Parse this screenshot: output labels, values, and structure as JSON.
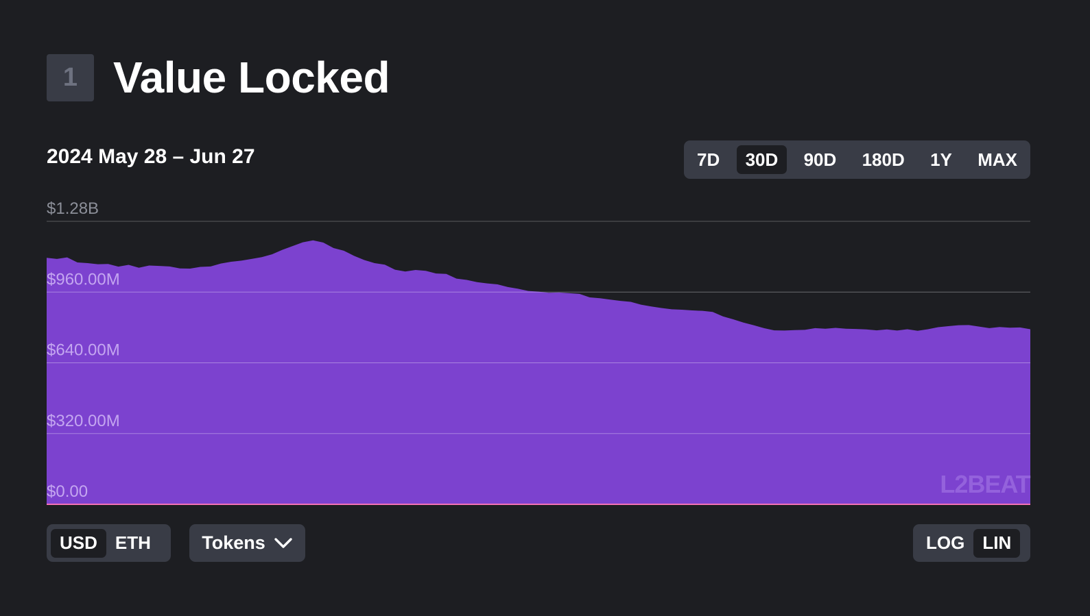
{
  "section": {
    "number": "1",
    "title": "Value Locked"
  },
  "date_range": "2024 May 28 – Jun 27",
  "range_buttons": [
    {
      "label": "7D",
      "active": false
    },
    {
      "label": "30D",
      "active": true
    },
    {
      "label": "90D",
      "active": false
    },
    {
      "label": "180D",
      "active": false
    },
    {
      "label": "1Y",
      "active": false
    },
    {
      "label": "MAX",
      "active": false
    }
  ],
  "unit_toggle": {
    "usd": "USD",
    "eth": "ETH",
    "active": "USD"
  },
  "tokens_button": {
    "label": "Tokens",
    "icon": "chevron-down-icon"
  },
  "scale_toggle": {
    "log": "LOG",
    "lin": "LIN",
    "active": "LIN"
  },
  "watermark": "L2BEAT",
  "colors": {
    "background": "#1d1e22",
    "area_fill": "#7c42cf",
    "control_bg": "#393c46",
    "baseline": "#f472b6"
  },
  "chart_data": {
    "type": "area",
    "title": "",
    "xlabel": "",
    "ylabel": "",
    "x_start": "2024-05-28",
    "x_end": "2024-06-27",
    "ylim": [
      0,
      1280000000
    ],
    "yticks": [
      {
        "value": 1280000000,
        "label": "$1.28B"
      },
      {
        "value": 960000000,
        "label": "$960.00M"
      },
      {
        "value": 640000000,
        "label": "$640.00M"
      },
      {
        "value": 320000000,
        "label": "$320.00M"
      },
      {
        "value": 0,
        "label": "$0.00"
      }
    ],
    "grid": true,
    "scale": "linear",
    "series": [
      {
        "values": [
          1115,
          1110,
          1117,
          1094,
          1091,
          1086,
          1087,
          1075,
          1083,
          1070,
          1080,
          1078,
          1076,
          1067,
          1066,
          1074,
          1076,
          1089,
          1097,
          1102,
          1110,
          1118,
          1131,
          1151,
          1168,
          1185,
          1194,
          1184,
          1159,
          1147,
          1124,
          1105,
          1091,
          1084,
          1061,
          1053,
          1060,
          1056,
          1044,
          1042,
          1021,
          1015,
          1005,
          999,
          995,
          983,
          975,
          965,
          962,
          957,
          958,
          955,
          952,
          936,
          932,
          926,
          920,
          916,
          903,
          895,
          888,
          882,
          880,
          877,
          875,
          870,
          850,
          837,
          822,
          810,
          797,
          787,
          786,
          788,
          789,
          797,
          794,
          798,
          794,
          793,
          791,
          787,
          791,
          786,
          792,
          785,
          792,
          801,
          806,
          810,
          811,
          804,
          797,
          802,
          799,
          800,
          792
        ]
      }
    ]
  }
}
